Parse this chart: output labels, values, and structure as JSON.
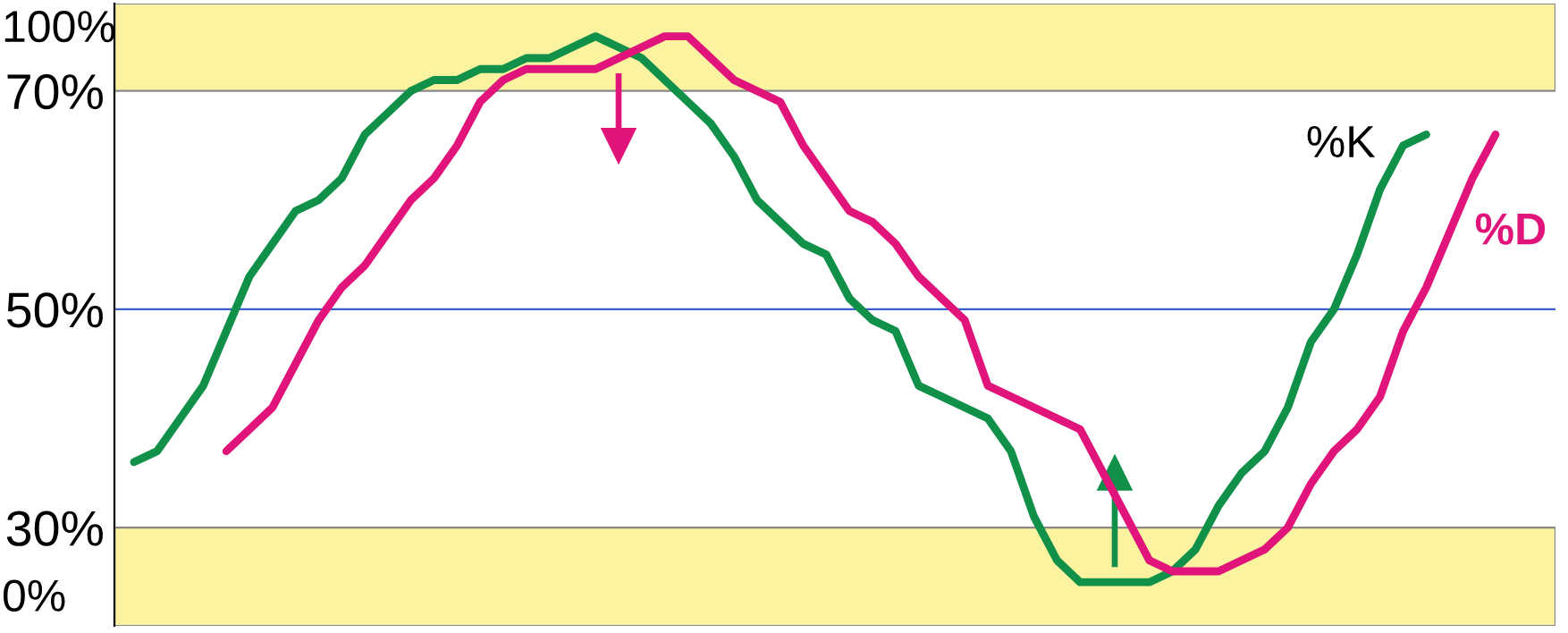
{
  "chart_data": {
    "type": "line",
    "tick_labels": "y",
    "legend": false,
    "grid": false,
    "line_style": "solid",
    "marker": "none",
    "categories": [
      null,
      null,
      null,
      null,
      null,
      null,
      null,
      null,
      null,
      null,
      null,
      null,
      null,
      null,
      null,
      null,
      null,
      null,
      null,
      null,
      null,
      null,
      null,
      null,
      null,
      null,
      null,
      null,
      null,
      null,
      null,
      null,
      null,
      null,
      null,
      null,
      null,
      null,
      null,
      null,
      null,
      null,
      null,
      null,
      null,
      null,
      null,
      null,
      null,
      null,
      null,
      null,
      null,
      null,
      null,
      null,
      null,
      null,
      null,
      null
    ],
    "ylim": [
      21,
      78
    ],
    "yticks": [
      {
        "value": 30,
        "label": "30%"
      },
      {
        "value": 50,
        "label": "50%"
      },
      {
        "value": 70,
        "label": "70%"
      }
    ],
    "annotations": [
      "100%",
      "0%"
    ],
    "series": [
      {
        "name": "%K",
        "color": "#109048",
        "values": [
          36,
          37,
          40,
          43,
          48,
          53,
          56,
          59,
          60,
          62,
          66,
          68,
          70,
          71,
          71,
          72,
          72,
          73,
          73,
          74,
          75,
          74,
          73,
          71,
          69,
          67,
          64,
          60,
          58,
          56,
          55,
          51,
          49,
          48,
          43,
          42,
          41,
          40,
          37,
          31,
          27,
          25,
          25,
          25,
          25,
          26,
          28,
          32,
          35,
          37,
          41,
          47,
          50,
          55,
          61,
          65,
          66,
          null,
          null,
          null
        ]
      },
      {
        "name": "%D",
        "color": "#e0147a",
        "values": [
          null,
          null,
          null,
          null,
          37,
          39,
          41,
          45,
          49,
          52,
          54,
          57,
          60,
          62,
          65,
          69,
          71,
          72,
          72,
          72,
          72,
          73,
          74,
          75,
          75,
          73,
          71,
          70,
          69,
          65,
          62,
          59,
          58,
          56,
          53,
          51,
          49,
          43,
          42,
          41,
          40,
          39,
          35,
          31,
          27,
          26,
          26,
          26,
          27,
          28,
          30,
          34,
          37,
          39,
          42,
          48,
          52,
          57,
          62,
          66
        ]
      }
    ],
    "ref_lines": [
      {
        "axis": "y",
        "value": 50,
        "color": "#3a5fcd",
        "line_style": "solid"
      }
    ],
    "bands": [
      {
        "axis": "y",
        "from": 70,
        "to": 78,
        "color": "#fbf3a0"
      },
      {
        "axis": "y",
        "from": 21,
        "to": 30,
        "color": "#fbf3a0"
      }
    ]
  }
}
